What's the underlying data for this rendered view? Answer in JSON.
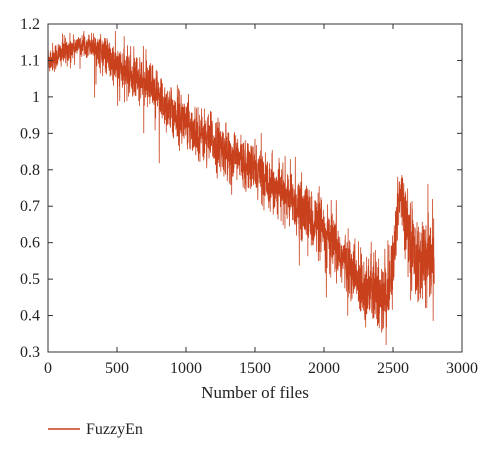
{
  "chart_data": {
    "type": "line",
    "title": "",
    "xlabel": "Number of files",
    "ylabel": "",
    "xlim": [
      0,
      3000
    ],
    "ylim": [
      0.3,
      1.2
    ],
    "x_ticks": [
      0,
      500,
      1000,
      1500,
      2000,
      2500,
      3000
    ],
    "y_ticks": [
      0.3,
      0.4,
      0.5,
      0.6,
      0.7,
      0.8,
      0.9,
      1,
      1.1,
      1.2
    ],
    "x_tick_labels": [
      "0",
      "500",
      "1000",
      "1500",
      "2000",
      "2500",
      "3000"
    ],
    "y_tick_labels": [
      "0.3",
      "0.4",
      "0.5",
      "0.6",
      "0.7",
      "0.8",
      "0.9",
      "1",
      "1.1",
      "1.2"
    ],
    "grid": false,
    "legend_position": "bottom-left",
    "series": [
      {
        "name": "FuzzyEn",
        "color": "#c8401c",
        "n_points": 2800,
        "trend_x": [
          0,
          100,
          200,
          300,
          400,
          500,
          700,
          900,
          1100,
          1300,
          1500,
          1700,
          1900,
          2050,
          2150,
          2250,
          2350,
          2420,
          2480,
          2520,
          2550,
          2600,
          2650,
          2700,
          2750,
          2800
        ],
        "trend_y": [
          1.1,
          1.12,
          1.14,
          1.145,
          1.12,
          1.08,
          1.04,
          0.96,
          0.9,
          0.85,
          0.8,
          0.74,
          0.67,
          0.6,
          0.55,
          0.49,
          0.47,
          0.44,
          0.48,
          0.62,
          0.75,
          0.66,
          0.57,
          0.55,
          0.53,
          0.55
        ],
        "noise": [
          0.02,
          0.02,
          0.015,
          0.015,
          0.025,
          0.03,
          0.035,
          0.035,
          0.035,
          0.035,
          0.035,
          0.035,
          0.04,
          0.045,
          0.04,
          0.045,
          0.05,
          0.05,
          0.05,
          0.05,
          0.04,
          0.05,
          0.06,
          0.06,
          0.06,
          0.06
        ]
      }
    ]
  },
  "legend": {
    "label": "FuzzyEn"
  }
}
